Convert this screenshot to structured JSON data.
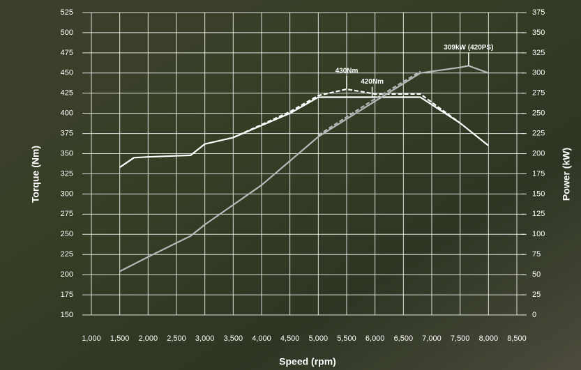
{
  "chart_data": {
    "type": "line",
    "xlabel": "Speed (rpm)",
    "ylabel": "Torque (Nm)",
    "y2label": "Power (kW)",
    "xlim": [
      1000,
      8500
    ],
    "xticks": [
      {
        "value": 1000,
        "label": "1,000"
      },
      {
        "value": 1500,
        "label": "1,500"
      },
      {
        "value": 2000,
        "label": "2,000"
      },
      {
        "value": 2500,
        "label": "2,500"
      },
      {
        "value": 3000,
        "label": "3,000"
      },
      {
        "value": 3500,
        "label": "3,500"
      },
      {
        "value": 4000,
        "label": "4,000"
      },
      {
        "value": 4500,
        "label": "4,500"
      },
      {
        "value": 5000,
        "label": "5,000"
      },
      {
        "value": 5500,
        "label": "5,500"
      },
      {
        "value": 6000,
        "label": "6,000"
      },
      {
        "value": 6500,
        "label": "6,500"
      },
      {
        "value": 7000,
        "label": "7,000"
      },
      {
        "value": 7500,
        "label": "7,500"
      },
      {
        "value": 8000,
        "label": "8,000"
      },
      {
        "value": 8500,
        "label": "8,500"
      }
    ],
    "ylim": [
      150,
      525
    ],
    "yticks": [
      150,
      175,
      200,
      225,
      250,
      275,
      300,
      325,
      350,
      375,
      400,
      425,
      450,
      475,
      500,
      525
    ],
    "y2lim": [
      0,
      375
    ],
    "y2ticks": [
      0,
      25,
      50,
      75,
      100,
      125,
      150,
      175,
      200,
      225,
      250,
      275,
      300,
      325,
      350,
      375
    ],
    "grid": true,
    "series": [
      {
        "color": "#ffffff",
        "style": "solid",
        "axis": "y",
        "x": [
          1500,
          1750,
          2000,
          2750,
          3000,
          3500,
          4000,
          4500,
          5000,
          5500,
          6000,
          6500,
          6800,
          7500,
          8000
        ],
        "values": [
          333,
          345,
          346,
          348,
          362,
          370,
          385,
          400,
          420,
          420,
          420,
          420,
          420,
          388,
          360
        ]
      },
      {
        "color": "#ffffff",
        "style": "dashed",
        "axis": "y",
        "x": [
          3500,
          4000,
          4500,
          5000,
          5500,
          6000,
          6500,
          6800,
          7500
        ],
        "values": [
          370,
          386,
          402,
          422,
          430,
          424,
          424,
          424,
          388
        ]
      },
      {
        "color": "#b8b8b8",
        "style": "solid",
        "axis": "y2",
        "x": [
          1500,
          2000,
          2750,
          3000,
          4000,
          5000,
          6000,
          6800,
          7500,
          7650,
          8000
        ],
        "values": [
          54,
          72,
          98,
          112,
          161,
          221,
          265,
          300,
          307,
          309,
          300
        ]
      },
      {
        "color": "#b8b8b8",
        "style": "dashed",
        "axis": "y2",
        "x": [
          5000,
          6000,
          6800
        ],
        "values": [
          223,
          268,
          302
        ]
      }
    ],
    "annotations": [
      {
        "text": "430Nm",
        "x": 5500,
        "y": 430,
        "axis": "y"
      },
      {
        "text": "420Nm",
        "x": 5950,
        "y": 420,
        "axis": "y"
      },
      {
        "text": "309kW (420PS)",
        "x": 7650,
        "y": 309,
        "axis": "y2"
      }
    ]
  }
}
